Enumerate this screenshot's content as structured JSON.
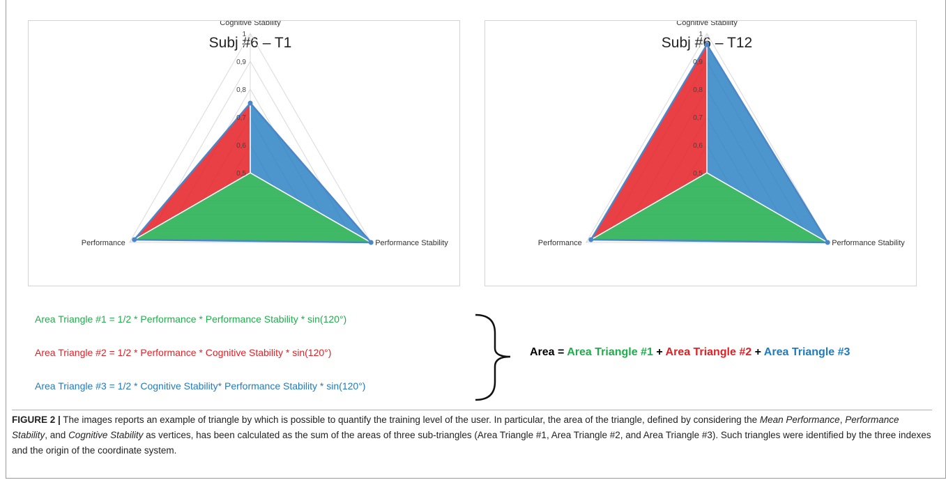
{
  "chart_data": [
    {
      "type": "radar",
      "title": "Subj #6 – T1",
      "axes": [
        "Cognitive Stability",
        "Performance Stability",
        "Performance"
      ],
      "ticks": [
        "0,5",
        "0,6",
        "0,7",
        "0,8",
        "0,9",
        "1"
      ],
      "rlim": [
        0.5,
        1
      ],
      "values": {
        "cognitive_stability": 0.75,
        "performance_stability": 1.0,
        "performance": 0.98
      },
      "colors": {
        "triangle1": "#1fad4b",
        "triangle2": "#e41f24",
        "triangle3": "#1f7bc0"
      }
    },
    {
      "type": "radar",
      "title": "Subj #6 – T12",
      "axes": [
        "Cognitive Stability",
        "Performance Stability",
        "Performance"
      ],
      "ticks": [
        "0,5",
        "0,6",
        "0,7",
        "0,8",
        "0,9",
        "1"
      ],
      "rlim": [
        0.5,
        1
      ],
      "values": {
        "cognitive_stability": 0.96,
        "performance_stability": 1.0,
        "performance": 0.98
      },
      "colors": {
        "triangle1": "#1fad4b",
        "triangle2": "#e41f24",
        "triangle3": "#1f7bc0"
      }
    }
  ],
  "formulas": {
    "triangle1": "Area Triangle #1 = 1/2 * Performance * Performance Stability * sin(120°)",
    "triangle2": "Area Triangle #2 = 1/2 * Performance * Cognitive Stability * sin(120°)",
    "triangle3": "Area Triangle #3 = 1/2 * Cognitive Stability* Performance Stability * sin(120°)"
  },
  "sum": {
    "lhs": "Area =",
    "t1": "Area Triangle #1",
    "plus": "+",
    "t2": "Area Triangle #2",
    "t3": "Area Triangle #3"
  },
  "caption": {
    "label": "FIGURE 2 |",
    "text_a": " The images reports an example of triangle by which is possible to quantify the training level of the user. In particular, the area of the triangle, defined by considering the ",
    "em1": "Mean Performance",
    "text_b": ", ",
    "em2": "Performance Stability",
    "text_c": ", and ",
    "em3": "Cognitive Stability",
    "text_d": " as vertices, has been calculated as the sum of the areas of three sub-triangles (Area Triangle #1, Area Triangle #2, and Area Triangle #3). Such triangles were identified by the three indexes and the origin of the coordinate system."
  }
}
